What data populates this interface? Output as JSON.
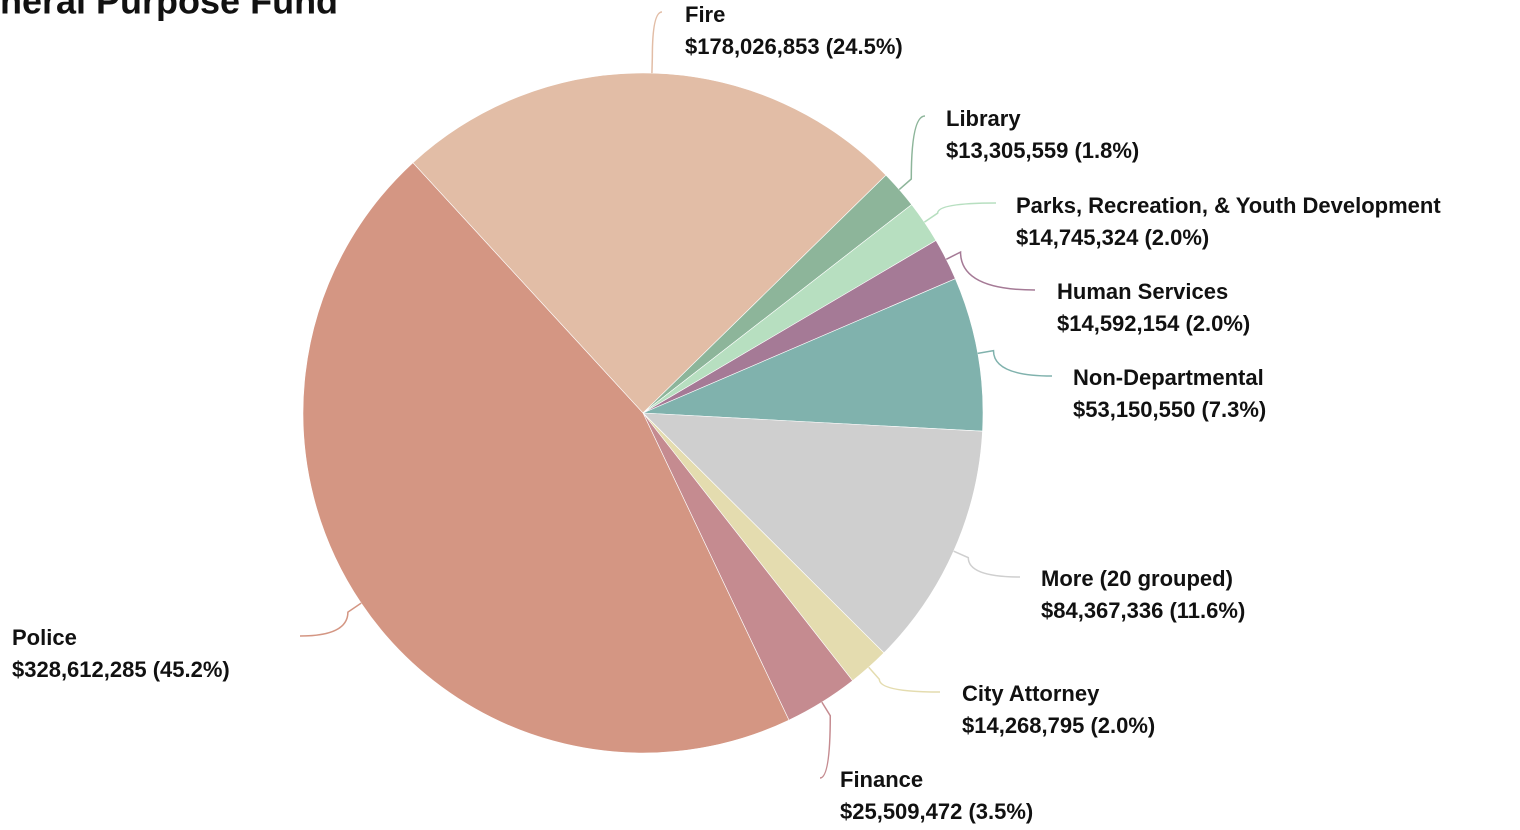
{
  "chart_data": {
    "type": "pie",
    "title": "neral Purpose Fund",
    "categories": [
      "Fire",
      "Library",
      "Parks, Recreation, & Youth Development",
      "Human Services",
      "Non-Departmental",
      "More (20 grouped)",
      "City Attorney",
      "Finance",
      "Police"
    ],
    "values": [
      178026853,
      13305559,
      14745324,
      14592154,
      53150550,
      84367336,
      14268795,
      25509472,
      328612285
    ],
    "value_labels": [
      "$178,026,853 (24.5%)",
      "$13,305,559 (1.8%)",
      "$14,745,324 (2.0%)",
      "$14,592,154 (2.0%)",
      "$53,150,550 (7.3%)",
      "$84,367,336 (11.6%)",
      "$14,268,795 (2.0%)",
      "$25,509,472 (3.5%)",
      "$328,612,285 (45.2%)"
    ],
    "colors": [
      "#e2bda6",
      "#8db59a",
      "#b7dfc0",
      "#a57a96",
      "#80b2ad",
      "#cfcfcf",
      "#e4dcaf",
      "#c58b90",
      "#d49683"
    ]
  }
}
